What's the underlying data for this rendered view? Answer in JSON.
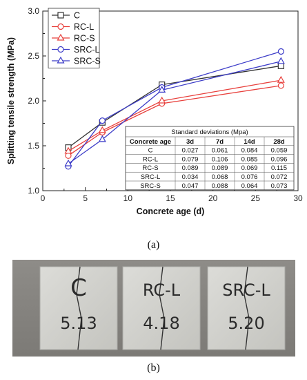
{
  "chart_data": {
    "type": "line",
    "title": "",
    "xlabel": "Concrete age (d)",
    "ylabel": "Splitting tensile strength (MPa)",
    "xlim": [
      0,
      30
    ],
    "ylim": [
      1.0,
      3.0
    ],
    "xticks": [
      "0",
      "5",
      "10",
      "15",
      "20",
      "25",
      "30"
    ],
    "yticks": [
      "1.0",
      "1.5",
      "2.0",
      "2.5",
      "3.0"
    ],
    "grid": false,
    "legend_position": "top-left",
    "x": [
      3,
      7,
      14,
      28
    ],
    "series": [
      {
        "name": "C",
        "color": "#333333",
        "marker": "square",
        "values": [
          1.48,
          1.76,
          2.18,
          2.39
        ]
      },
      {
        "name": "RC-L",
        "color": "#e8403c",
        "marker": "circle",
        "values": [
          1.39,
          1.65,
          1.97,
          2.17
        ]
      },
      {
        "name": "RC-S",
        "color": "#e8403c",
        "marker": "triangle",
        "values": [
          1.44,
          1.67,
          2.0,
          2.23
        ]
      },
      {
        "name": "SRC-L",
        "color": "#3c3cc8",
        "marker": "circle",
        "values": [
          1.27,
          1.78,
          2.15,
          2.55
        ]
      },
      {
        "name": "SRC-S",
        "color": "#3c3cc8",
        "marker": "triangle",
        "values": [
          1.3,
          1.57,
          2.12,
          2.44
        ]
      }
    ],
    "sd_table": {
      "title": "Standard deviations (Mpa)",
      "headers": [
        "Concrete age",
        "3d",
        "7d",
        "14d",
        "28d"
      ],
      "rows": [
        [
          "C",
          "0.027",
          "0.061",
          "0.084",
          "0.059"
        ],
        [
          "RC-L",
          "0.079",
          "0.106",
          "0.085",
          "0.096"
        ],
        [
          "RC-S",
          "0.089",
          "0.089",
          "0.069",
          "0.115"
        ],
        [
          "SRC-L",
          "0.034",
          "0.068",
          "0.076",
          "0.072"
        ],
        [
          "SRC-S",
          "0.047",
          "0.088",
          "0.064",
          "0.073"
        ]
      ]
    }
  },
  "captions": {
    "a": "(a)",
    "b": "(b)"
  },
  "photo": {
    "specimens": [
      {
        "label_line1": "C",
        "label_line2": "5.13"
      },
      {
        "label_line1": "RC-L",
        "label_line2": "4.18"
      },
      {
        "label_line1": "SRC-L",
        "label_line2": "5.20"
      }
    ]
  }
}
